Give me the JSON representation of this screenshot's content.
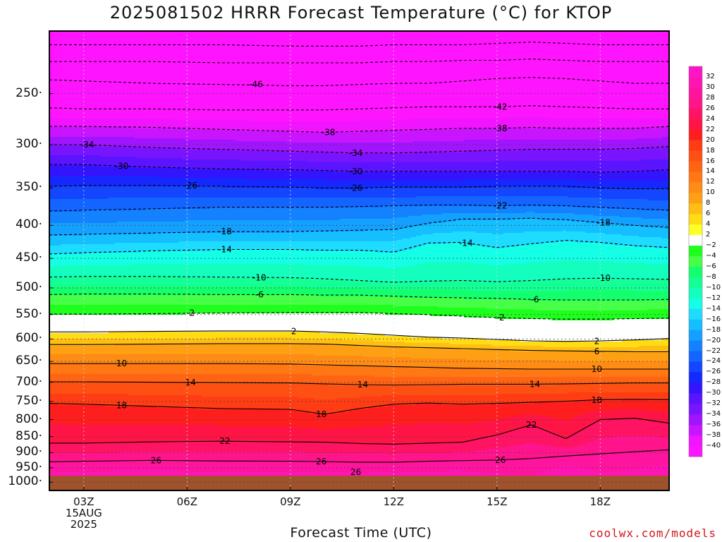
{
  "title": "2025081502 HRRR Forecast Temperature (°C) for KTOP",
  "credit": "coolwx.com/models",
  "chart_data": {
    "type": "heatmap",
    "title": "2025081502 HRRR Forecast Temperature (°C) for KTOP",
    "xlabel": "Forecast Time (UTC)",
    "ylabel": "",
    "y_scale": "log",
    "y_axis": "pressure (reversed)",
    "x_range_hours": [
      2,
      20
    ],
    "y_range": [
      1030,
      200
    ],
    "grid": true,
    "legend": "colorbar-right",
    "x_ticks": [
      {
        "hour": 3,
        "lines": [
          "03Z",
          "15AUG",
          "2025"
        ]
      },
      {
        "hour": 6,
        "lines": [
          "06Z"
        ]
      },
      {
        "hour": 9,
        "lines": [
          "09Z"
        ]
      },
      {
        "hour": 12,
        "lines": [
          "12Z"
        ]
      },
      {
        "hour": 15,
        "lines": [
          "15Z"
        ]
      },
      {
        "hour": 18,
        "lines": [
          "18Z"
        ]
      }
    ],
    "y_ticks": [
      250,
      300,
      350,
      400,
      450,
      500,
      550,
      600,
      650,
      700,
      750,
      800,
      850,
      900,
      950,
      1000
    ],
    "surface_pressure": 977,
    "times": [
      2,
      3,
      5,
      7,
      9,
      10,
      11,
      12,
      13,
      14,
      15,
      16,
      17,
      18,
      19,
      20
    ],
    "contours": [
      {
        "level": -50,
        "dashed": true,
        "p": [
          210,
          210,
          210,
          210,
          211,
          211,
          211,
          210,
          210,
          210,
          209,
          208,
          209,
          210,
          210,
          210
        ]
      },
      {
        "level": -48,
        "dashed": true,
        "p": [
          223,
          223,
          223,
          224,
          224,
          224,
          224,
          223,
          223,
          222,
          222,
          221,
          222,
          223,
          223,
          223
        ]
      },
      {
        "level": -46,
        "dashed": true,
        "p": [
          238,
          239,
          241,
          242,
          243,
          243,
          242,
          241,
          241,
          239,
          237,
          236,
          237,
          239,
          241,
          241
        ]
      },
      {
        "level": -42,
        "dashed": true,
        "p": [
          263,
          264,
          264,
          265,
          265,
          265,
          264,
          263,
          262,
          262,
          262,
          261,
          262,
          263,
          264,
          264
        ]
      },
      {
        "level": -38,
        "dashed": true,
        "p": [
          281,
          281,
          282,
          284,
          286,
          287,
          286,
          285,
          284,
          283,
          283,
          282,
          283,
          283,
          283,
          281
        ]
      },
      {
        "level": -34,
        "dashed": true,
        "p": [
          300,
          300,
          303,
          305,
          307,
          308,
          309,
          309,
          308,
          307,
          306,
          305,
          305,
          305,
          304,
          302
        ]
      },
      {
        "level": -30,
        "dashed": true,
        "p": [
          322,
          322,
          325,
          327,
          328,
          329,
          330,
          330,
          330,
          330,
          330,
          330,
          330,
          331,
          330,
          328
        ]
      },
      {
        "level": -26,
        "dashed": true,
        "p": [
          348,
          347,
          347,
          348,
          349,
          350,
          350,
          349,
          349,
          349,
          348,
          348,
          348,
          350,
          351,
          351
        ]
      },
      {
        "level": -22,
        "dashed": true,
        "p": [
          380,
          379,
          377,
          375,
          375,
          375,
          374,
          373,
          372,
          372,
          373,
          372,
          373,
          375,
          377,
          379
        ]
      },
      {
        "level": -18,
        "dashed": true,
        "p": [
          414,
          413,
          411,
          409,
          409,
          408,
          407,
          406,
          397,
          391,
          391,
          390,
          392,
          396,
          400,
          403
        ]
      },
      {
        "level": -14,
        "dashed": true,
        "p": [
          443,
          441,
          438,
          436,
          436,
          437,
          437,
          440,
          426,
          425,
          433,
          427,
          422,
          425,
          430,
          433
        ]
      },
      {
        "level": -10,
        "dashed": true,
        "p": [
          481,
          480,
          480,
          481,
          482,
          484,
          487,
          490,
          488,
          487,
          489,
          487,
          484,
          483,
          484,
          485
        ]
      },
      {
        "level": -6,
        "dashed": true,
        "p": [
          512,
          511,
          511,
          512,
          512,
          513,
          513,
          515,
          517,
          518,
          519,
          521,
          522,
          522,
          522,
          521
        ]
      },
      {
        "level": -2,
        "dashed": true,
        "p": [
          549,
          549,
          548,
          547,
          546,
          546,
          546,
          548,
          550,
          553,
          556,
          558,
          559,
          559,
          558,
          557
        ]
      },
      {
        "level": 2,
        "dashed": false,
        "p": [
          585,
          585,
          584,
          583,
          583,
          585,
          588,
          592,
          596,
          598,
          601,
          604,
          605,
          604,
          602,
          599
        ]
      },
      {
        "level": 6,
        "dashed": false,
        "p": [
          612,
          612,
          611,
          610,
          610,
          611,
          614,
          617,
          619,
          621,
          623,
          625,
          626,
          627,
          628,
          628
        ]
      },
      {
        "level": 10,
        "dashed": false,
        "p": [
          655,
          655,
          655,
          655,
          656,
          658,
          660,
          662,
          664,
          666,
          667,
          668,
          668,
          668,
          668,
          668
        ]
      },
      {
        "level": 14,
        "dashed": false,
        "p": [
          699,
          699,
          700,
          701,
          702,
          704,
          706,
          707,
          706,
          705,
          705,
          705,
          704,
          703,
          702,
          702
        ]
      },
      {
        "level": 18,
        "dashed": false,
        "p": [
          755,
          757,
          763,
          769,
          771,
          785,
          769,
          757,
          754,
          757,
          755,
          752,
          749,
          745,
          744,
          745
        ]
      },
      {
        "level": 22,
        "dashed": false,
        "p": [
          870,
          870,
          866,
          864,
          866,
          867,
          871,
          873,
          870,
          867,
          845,
          815,
          856,
          800,
          796,
          810
        ]
      },
      {
        "level": 26,
        "dashed": false,
        "p": [
          930,
          928,
          925,
          927,
          928,
          929,
          931,
          931,
          928,
          926,
          924,
          919,
          911,
          904,
          897,
          891
        ]
      }
    ],
    "contour_labels": [
      {
        "text": "-46",
        "hour": 8.0,
        "p": 242
      },
      {
        "text": "-42",
        "hour": 15.1,
        "p": 262
      },
      {
        "text": "-38",
        "hour": 10.1,
        "p": 287
      },
      {
        "text": "-38",
        "hour": 15.1,
        "p": 283
      },
      {
        "text": "-34",
        "hour": 3.1,
        "p": 300
      },
      {
        "text": "-34",
        "hour": 10.9,
        "p": 309
      },
      {
        "text": "-30",
        "hour": 4.1,
        "p": 324
      },
      {
        "text": "-30",
        "hour": 10.9,
        "p": 330
      },
      {
        "text": "-26",
        "hour": 6.1,
        "p": 347
      },
      {
        "text": "-26",
        "hour": 10.9,
        "p": 350
      },
      {
        "text": "-22",
        "hour": 15.1,
        "p": 373
      },
      {
        "text": "-18",
        "hour": 7.1,
        "p": 409
      },
      {
        "text": "-18",
        "hour": 18.1,
        "p": 396
      },
      {
        "text": "-14",
        "hour": 7.1,
        "p": 436
      },
      {
        "text": "-14",
        "hour": 14.1,
        "p": 426
      },
      {
        "text": "-10",
        "hour": 8.1,
        "p": 482
      },
      {
        "text": "-10",
        "hour": 18.1,
        "p": 483
      },
      {
        "text": "-6",
        "hour": 8.1,
        "p": 512
      },
      {
        "text": "-6",
        "hour": 16.1,
        "p": 521
      },
      {
        "text": "-2",
        "hour": 6.1,
        "p": 547
      },
      {
        "text": "-2",
        "hour": 15.1,
        "p": 556
      },
      {
        "text": "2",
        "hour": 9.1,
        "p": 584
      },
      {
        "text": "2",
        "hour": 17.9,
        "p": 605
      },
      {
        "text": "6",
        "hour": 17.9,
        "p": 627
      },
      {
        "text": "10",
        "hour": 4.1,
        "p": 655
      },
      {
        "text": "10",
        "hour": 17.9,
        "p": 668
      },
      {
        "text": "14",
        "hour": 6.1,
        "p": 701
      },
      {
        "text": "14",
        "hour": 11.1,
        "p": 706
      },
      {
        "text": "14",
        "hour": 16.1,
        "p": 705
      },
      {
        "text": "18",
        "hour": 4.1,
        "p": 760
      },
      {
        "text": "18",
        "hour": 9.9,
        "p": 785
      },
      {
        "text": "18",
        "hour": 17.9,
        "p": 746
      },
      {
        "text": "22",
        "hour": 7.1,
        "p": 864
      },
      {
        "text": "22",
        "hour": 16.0,
        "p": 815
      },
      {
        "text": "26",
        "hour": 5.1,
        "p": 926
      },
      {
        "text": "26",
        "hour": 9.9,
        "p": 929
      },
      {
        "text": "26",
        "hour": 15.1,
        "p": 924
      },
      {
        "text": "26",
        "hour": 10.9,
        "p": 965
      }
    ],
    "colorbar": {
      "labels": [
        "32",
        "30",
        "28",
        "26",
        "24",
        "22",
        "20",
        "18",
        "16",
        "14",
        "12",
        "10",
        "8",
        "6",
        "4",
        "2",
        "−2",
        "−4",
        "−6",
        "−8",
        "−10",
        "−12",
        "−14",
        "−16",
        "−18",
        "−20",
        "−22",
        "−24",
        "−26",
        "−28",
        "−30",
        "−32",
        "−34",
        "−36",
        "−38",
        "−40"
      ],
      "colors": [
        "#ff14c8",
        "#ff14b4",
        "#ff14a0",
        "#ff148c",
        "#ff1464",
        "#ff1446",
        "#ff1e1e",
        "#ff3c14",
        "#ff5014",
        "#ff6414",
        "#ff7814",
        "#ff8c14",
        "#ffa014",
        "#ffbe14",
        "#ffdc14",
        "#ffff28",
        "#ffffff",
        "#1eff1e",
        "#46ff46",
        "#14ff6e",
        "#14ff96",
        "#14ffbe",
        "#14ffe6",
        "#1edcff",
        "#14beff",
        "#14a0ff",
        "#1482ff",
        "#1464ff",
        "#1446ff",
        "#1428ff",
        "#3214ff",
        "#5a14ff",
        "#7814ff",
        "#a014ff",
        "#c814ff",
        "#f014ff",
        "#ff14ff"
      ]
    }
  }
}
